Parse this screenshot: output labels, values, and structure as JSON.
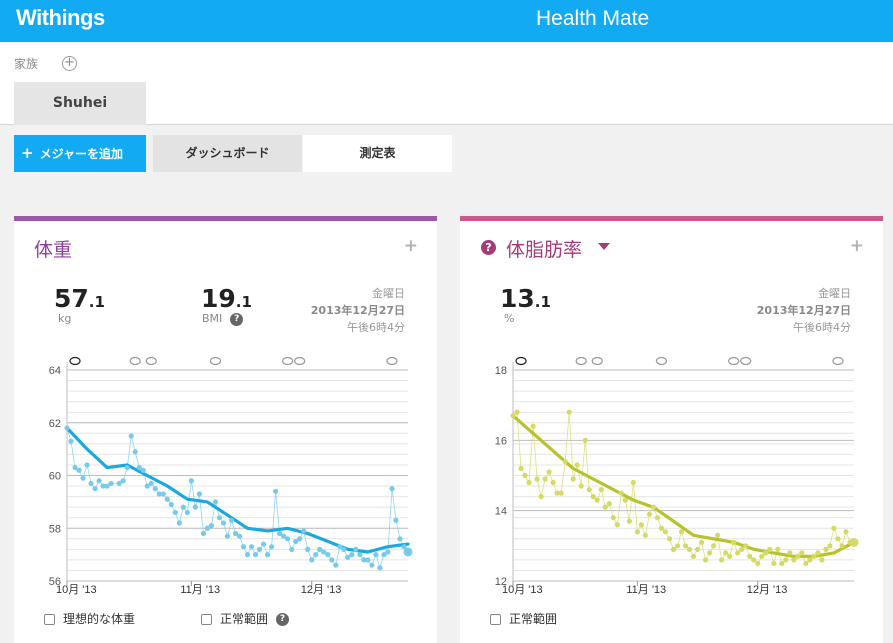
{
  "header": {
    "logo": "Withings",
    "title": "Health Mate"
  },
  "family": {
    "label": "家族",
    "add_icon": "+",
    "user": "Shuhei"
  },
  "toolbar": {
    "add_plus": "+",
    "add_label": "メジャーを追加",
    "tab_dashboard": "ダッシュボード",
    "tab_table": "測定表"
  },
  "colors": {
    "brand": "#12aaf2",
    "weight_line": "#19a9de",
    "weight_points": "#76cbec",
    "fat_line": "#b8c22a",
    "fat_points": "#d4da62"
  },
  "weight_card": {
    "title": "体重",
    "plus": "+",
    "value_int": "57",
    "value_dec": ".1",
    "unit": "kg",
    "bmi_int": "19",
    "bmi_dec": ".1",
    "bmi_label": "BMI",
    "bmi_help": "?",
    "date_day": "金曜日",
    "date": "2013年12月27日",
    "time": "午後6時4分",
    "legend_ideal": "理想的な体重",
    "legend_normal": "正常範囲",
    "legend_help": "?"
  },
  "fat_card": {
    "help_icon": "?",
    "title": "体脂肪率",
    "plus": "+",
    "value_int": "13",
    "value_dec": ".1",
    "unit": "%",
    "date_day": "金曜日",
    "date": "2013年12月27日",
    "time": "午後6時4分",
    "legend_normal": "正常範囲"
  },
  "chart_data": [
    {
      "type": "line",
      "title": "体重",
      "xlim": [
        0,
        85
      ],
      "ylim": [
        56,
        64
      ],
      "yticks": [
        56,
        58,
        60,
        62,
        64
      ],
      "xticks": [
        {
          "x": 0,
          "label": "10月 '13"
        },
        {
          "x": 31,
          "label": "11月 '13"
        },
        {
          "x": 61,
          "label": "12月 '13"
        }
      ],
      "grid": true,
      "comment_markers_x": [
        2,
        17,
        21,
        37,
        55,
        58,
        81
      ],
      "series": [
        {
          "role": "points",
          "x": [
            0,
            1,
            2,
            3,
            4,
            5,
            6,
            7,
            8,
            9,
            10,
            11,
            13,
            14,
            15,
            16,
            17,
            18,
            19,
            20,
            21,
            22,
            23,
            24,
            25,
            26,
            27,
            28,
            29,
            30,
            31,
            32,
            33,
            34,
            35,
            36,
            37,
            38,
            39,
            40,
            41,
            42,
            43,
            44,
            45,
            46,
            47,
            48,
            49,
            50,
            51,
            52,
            53,
            54,
            55,
            56,
            57,
            58,
            59,
            60,
            61,
            62,
            63,
            64,
            65,
            66,
            67,
            68,
            69,
            70,
            71,
            72,
            73,
            74,
            75,
            76,
            77,
            78,
            79,
            80,
            81,
            82,
            83,
            84,
            85
          ],
          "y": [
            61.8,
            61.3,
            60.3,
            60.2,
            59.9,
            60.4,
            59.7,
            59.5,
            59.8,
            59.6,
            59.6,
            59.7,
            59.7,
            59.8,
            60.3,
            61.5,
            60.9,
            60.3,
            60.2,
            59.6,
            59.7,
            59.5,
            59.3,
            59.3,
            59.1,
            58.9,
            58.6,
            58.2,
            58.8,
            58.6,
            59.8,
            58.8,
            59.3,
            57.8,
            58.0,
            58.1,
            59.0,
            58.4,
            58.2,
            57.7,
            58.3,
            57.8,
            57.7,
            57.3,
            57.0,
            57.3,
            57.0,
            57.2,
            57.4,
            57.0,
            57.3,
            59.4,
            57.8,
            57.7,
            57.6,
            57.2,
            57.5,
            57.6,
            57.9,
            57.2,
            56.8,
            57.0,
            57.2,
            57.1,
            57.0,
            56.8,
            56.6,
            57.3,
            57.2,
            56.9,
            57.0,
            57.2,
            57.0,
            56.8,
            56.8,
            56.6,
            57.0,
            56.5,
            57.0,
            57.1,
            59.5,
            58.3,
            57.6,
            57.3,
            57.1
          ]
        },
        {
          "role": "trend",
          "x": [
            0,
            5,
            10,
            15,
            20,
            25,
            30,
            35,
            40,
            45,
            50,
            55,
            60,
            65,
            70,
            75,
            80,
            85
          ],
          "y": [
            61.8,
            61.0,
            60.3,
            60.4,
            60.0,
            59.6,
            59.1,
            59.0,
            58.5,
            58.0,
            57.9,
            58.0,
            57.8,
            57.5,
            57.2,
            57.1,
            57.3,
            57.4
          ]
        }
      ]
    },
    {
      "type": "line",
      "title": "体脂肪率",
      "xlim": [
        0,
        85
      ],
      "ylim": [
        12,
        18
      ],
      "yticks": [
        12,
        14,
        16,
        18
      ],
      "xticks": [
        {
          "x": 0,
          "label": "10月 '13"
        },
        {
          "x": 31,
          "label": "11月 '13"
        },
        {
          "x": 61,
          "label": "12月 '13"
        }
      ],
      "grid": true,
      "comment_markers_x": [
        2,
        17,
        21,
        37,
        55,
        58,
        81
      ],
      "series": [
        {
          "role": "points",
          "x": [
            0,
            1,
            2,
            3,
            4,
            5,
            6,
            7,
            8,
            9,
            10,
            11,
            12,
            13,
            14,
            15,
            16,
            17,
            18,
            19,
            20,
            21,
            22,
            23,
            24,
            25,
            26,
            27,
            28,
            29,
            30,
            31,
            32,
            33,
            34,
            35,
            36,
            37,
            38,
            39,
            40,
            41,
            42,
            43,
            44,
            45,
            46,
            47,
            48,
            49,
            50,
            51,
            52,
            53,
            54,
            55,
            56,
            57,
            58,
            59,
            60,
            61,
            62,
            63,
            64,
            65,
            66,
            67,
            68,
            69,
            70,
            71,
            72,
            73,
            74,
            75,
            76,
            77,
            78,
            79,
            80,
            81,
            82,
            83,
            84,
            85
          ],
          "y": [
            16.7,
            16.8,
            15.2,
            15.0,
            14.8,
            16.4,
            14.9,
            14.4,
            14.9,
            15.1,
            14.8,
            14.5,
            14.5,
            15.4,
            16.8,
            14.9,
            15.3,
            14.7,
            16.0,
            14.6,
            14.4,
            14.3,
            14.6,
            14.1,
            14.2,
            13.8,
            13.6,
            14.5,
            14.3,
            13.7,
            14.8,
            13.4,
            13.6,
            13.3,
            13.9,
            14.1,
            13.8,
            13.5,
            13.4,
            13.2,
            12.9,
            13.0,
            13.4,
            13.0,
            12.9,
            12.7,
            12.9,
            13.1,
            12.6,
            12.8,
            13.0,
            13.3,
            12.6,
            12.8,
            12.7,
            13.1,
            12.8,
            12.9,
            13.0,
            12.7,
            12.6,
            12.5,
            12.7,
            12.8,
            12.9,
            12.5,
            12.9,
            12.5,
            12.6,
            12.8,
            12.6,
            12.7,
            12.8,
            12.5,
            12.6,
            12.7,
            12.8,
            12.6,
            12.9,
            13.0,
            13.5,
            13.2,
            13.0,
            13.4,
            13.1,
            13.1
          ]
        },
        {
          "role": "trend",
          "x": [
            0,
            5,
            10,
            15,
            20,
            25,
            30,
            35,
            40,
            45,
            50,
            55,
            60,
            65,
            70,
            75,
            80,
            85
          ],
          "y": [
            16.7,
            16.2,
            15.7,
            15.2,
            14.9,
            14.6,
            14.3,
            14.1,
            13.7,
            13.3,
            13.2,
            13.1,
            12.9,
            12.8,
            12.7,
            12.7,
            12.8,
            13.1
          ]
        }
      ]
    }
  ]
}
